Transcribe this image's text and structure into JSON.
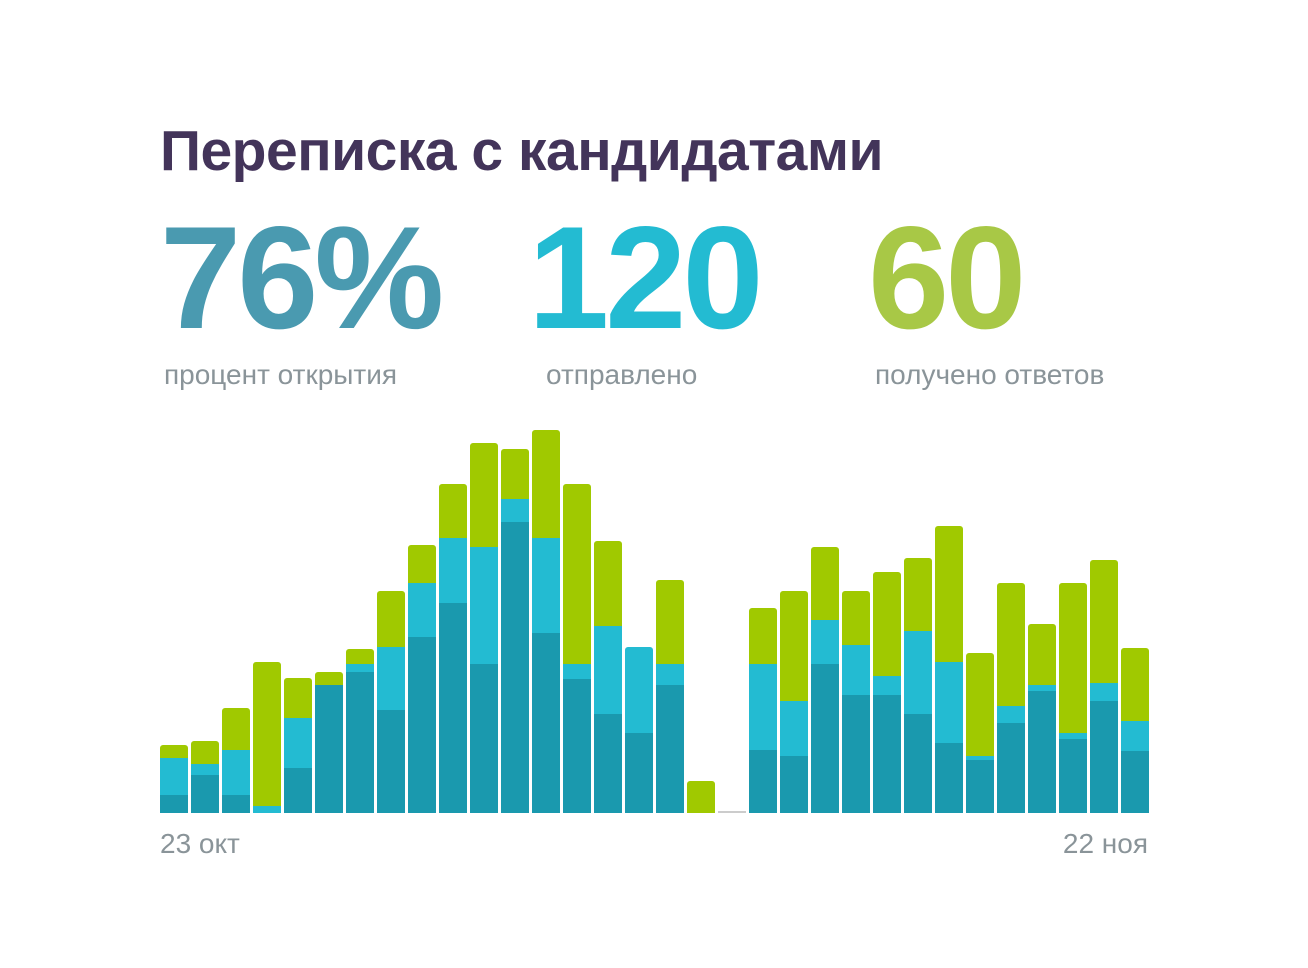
{
  "title": "Переписка с кандидатами",
  "kpis": [
    {
      "value": "76%",
      "label": "процент открытия",
      "color": "#4a9ab0"
    },
    {
      "value": "120",
      "label": "отправлено",
      "color": "#23bbd2"
    },
    {
      "value": "60",
      "label": "получено ответов",
      "color": "#a8c846"
    }
  ],
  "chart_data": {
    "type": "bar",
    "stacked": true,
    "x_start_label": "23 окт",
    "x_end_label": "22 ноя",
    "ylim": [
      0,
      400
    ],
    "grid": false,
    "colors": [
      "#1a99ae",
      "#23bbd2",
      "#a0c900"
    ],
    "empty_color": "#cccccc",
    "series": [
      {
        "values": [
          18,
          38,
          18,
          0,
          45,
          128,
          141,
          103,
          176,
          210,
          149,
          291,
          180,
          134,
          99,
          80,
          128,
          0,
          0,
          63,
          57,
          149,
          118,
          118,
          99,
          70,
          53,
          90,
          122,
          74,
          112,
          62
        ]
      },
      {
        "values": [
          37,
          11,
          45,
          7,
          50,
          0,
          8,
          63,
          54,
          65,
          117,
          23,
          95,
          15,
          88,
          86,
          21,
          0,
          0,
          86,
          55,
          44,
          50,
          19,
          83,
          81,
          4,
          17,
          6,
          6,
          18,
          30
        ]
      },
      {
        "values": [
          13,
          23,
          42,
          144,
          40,
          13,
          15,
          56,
          38,
          54,
          104,
          50,
          108,
          180,
          85,
          0,
          84,
          32,
          0,
          56,
          110,
          73,
          54,
          104,
          73,
          136,
          103,
          123,
          61,
          150,
          123,
          73
        ]
      }
    ]
  }
}
